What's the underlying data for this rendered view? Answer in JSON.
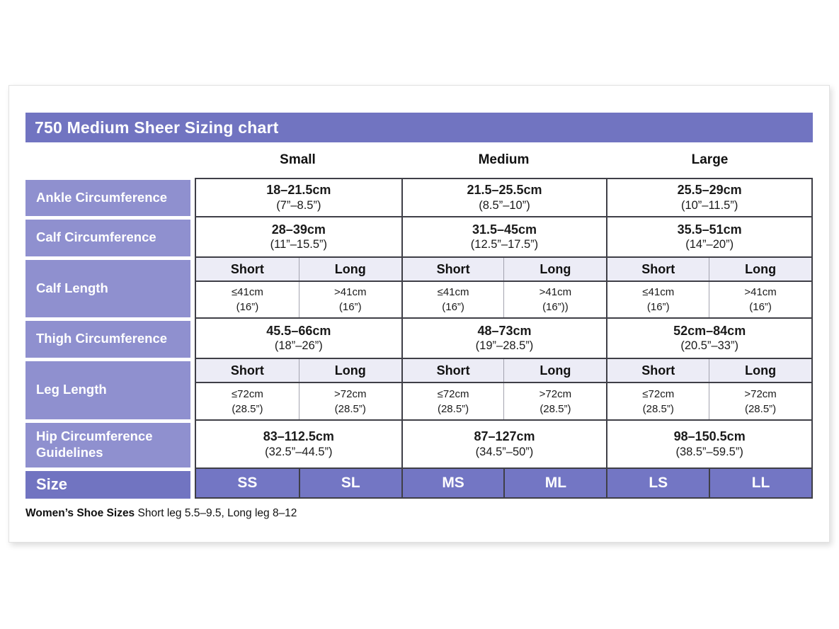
{
  "title": "750 Medium Sheer Sizing chart",
  "colors": {
    "header_purple": "#7174C1",
    "label_purple": "#8F90CF",
    "size_cell_purple": "#7376C4",
    "subheader_lavender": "#ECECF6",
    "border_dark": "#3F3F47",
    "text_dark": "#1A1A1A"
  },
  "table": {
    "group_headers": [
      "Small",
      "Medium",
      "Large"
    ],
    "rows": {
      "ankle": {
        "label": "Ankle Circumference",
        "values": [
          {
            "cm": "18–21.5cm",
            "inch": "(7”–8.5”)"
          },
          {
            "cm": "21.5–25.5cm",
            "inch": "(8.5”–10”)"
          },
          {
            "cm": "25.5–29cm",
            "inch": "(10”–11.5”)"
          }
        ]
      },
      "calf_circumference": {
        "label": "Calf Circumference",
        "values": [
          {
            "cm": "28–39cm",
            "inch": "(11”–15.5”)"
          },
          {
            "cm": "31.5–45cm",
            "inch": "(12.5”–17.5”)"
          },
          {
            "cm": "35.5–51cm",
            "inch": "(14”–20”)"
          }
        ]
      },
      "calf_length": {
        "label": "Calf Length",
        "subheaders": [
          "Short",
          "Long",
          "Short",
          "Long",
          "Short",
          "Long"
        ],
        "values": [
          {
            "cm": "≤41cm",
            "inch": "(16”)"
          },
          {
            "cm": ">41cm",
            "inch": "(16”)"
          },
          {
            "cm": "≤41cm",
            "inch": "(16”)"
          },
          {
            "cm": ">41cm",
            "inch": "(16”))"
          },
          {
            "cm": "≤41cm",
            "inch": "(16”)"
          },
          {
            "cm": ">41cm",
            "inch": "(16”)"
          }
        ]
      },
      "thigh": {
        "label": "Thigh Circumference",
        "values": [
          {
            "cm": "45.5–66cm",
            "inch": "(18”–26”)"
          },
          {
            "cm": "48–73cm",
            "inch": "(19”–28.5”)"
          },
          {
            "cm": "52cm–84cm",
            "inch": "(20.5”–33”)"
          }
        ]
      },
      "leg_length": {
        "label": "Leg Length",
        "subheaders": [
          "Short",
          "Long",
          "Short",
          "Long",
          "Short",
          "Long"
        ],
        "values": [
          {
            "cm": "≤72cm",
            "inch": "(28.5”)"
          },
          {
            "cm": ">72cm",
            "inch": "(28.5”)"
          },
          {
            "cm": "≤72cm",
            "inch": "(28.5”)"
          },
          {
            "cm": ">72cm",
            "inch": "(28.5”)"
          },
          {
            "cm": "≤72cm",
            "inch": "(28.5”)"
          },
          {
            "cm": ">72cm",
            "inch": "(28.5”)"
          }
        ]
      },
      "hip": {
        "label": "Hip Circumference Guidelines",
        "values": [
          {
            "cm": "83–112.5cm",
            "inch": "(32.5”–44.5”)"
          },
          {
            "cm": "87–127cm",
            "inch": "(34.5”–50”)"
          },
          {
            "cm": "98–150.5cm",
            "inch": "(38.5”–59.5”)"
          }
        ]
      },
      "size": {
        "label": "Size",
        "values": [
          "SS",
          "SL",
          "MS",
          "ML",
          "LS",
          "LL"
        ]
      }
    }
  },
  "footer": {
    "bold_label": "Women’s Shoe Sizes",
    "rest": " Short leg 5.5–9.5, Long leg 8–12"
  }
}
